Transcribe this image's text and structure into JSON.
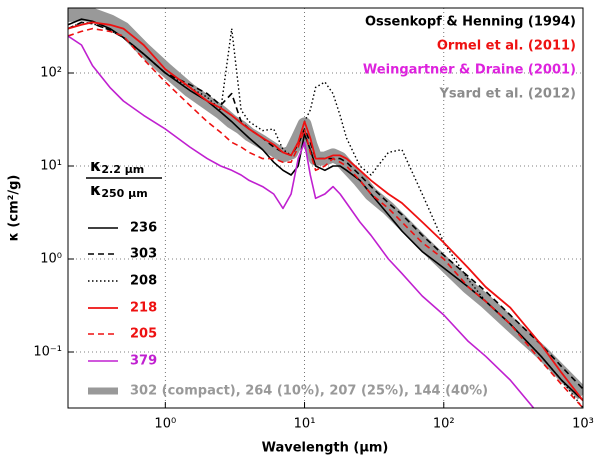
{
  "chart_data": {
    "type": "line",
    "xlabel": "Wavelength (μm)",
    "ylabel": "κ (cm²/g)",
    "xscale": "log",
    "yscale": "log",
    "grid": true,
    "xlim": [
      0.2,
      1000
    ],
    "ylim": [
      0.025,
      500
    ],
    "xticks": [
      {
        "value": 1,
        "label": "10⁰"
      },
      {
        "value": 10,
        "label": "10¹"
      },
      {
        "value": 100,
        "label": "10²"
      },
      {
        "value": 1000,
        "label": "10³"
      }
    ],
    "yticks": [
      {
        "value": 0.1,
        "label": "10⁻¹"
      },
      {
        "value": 1,
        "label": "10⁰"
      },
      {
        "value": 10,
        "label": "10¹"
      },
      {
        "value": 100,
        "label": "10²"
      }
    ],
    "references": [
      {
        "name": "Ossenkopf & Henning (1994)",
        "color": "#000000"
      },
      {
        "name": "Ormel et al. (2011)",
        "color": "#ee1111"
      },
      {
        "name": "Weingartner & Draine (2001)",
        "color": "#dd22dd"
      },
      {
        "name": "Ysard et al. (2012)",
        "color": "#8c8c8c"
      }
    ],
    "legend_title": {
      "numerator": {
        "symbol": "κ",
        "subscript": "2.2 μm"
      },
      "denominator": {
        "symbol": "κ",
        "subscript": "250 μm"
      }
    },
    "x": [
      0.2,
      0.25,
      0.3,
      0.4,
      0.5,
      0.7,
      1,
      1.5,
      2,
      2.5,
      3,
      3.5,
      4,
      5,
      6,
      7,
      8,
      9,
      10,
      11,
      12,
      14,
      16,
      18,
      20,
      25,
      30,
      40,
      50,
      70,
      100,
      150,
      200,
      300,
      500,
      700,
      1000
    ],
    "series": [
      {
        "name": "302 (compact), 264 (10%), 207 (25%), 144 (40%)",
        "color": "#999999",
        "dash": "solid",
        "width": 14,
        "values": [
          420,
          430,
          420,
          360,
          300,
          180,
          110,
          65,
          48,
          38,
          30,
          26,
          22,
          18,
          15,
          13,
          14,
          20,
          28,
          17,
          12,
          12,
          13,
          12,
          10,
          7,
          5,
          3.5,
          2.5,
          1.5,
          0.9,
          0.5,
          0.35,
          0.2,
          0.1,
          0.06,
          0.035
        ]
      },
      {
        "name": "236",
        "color": "#000000",
        "dash": "solid",
        "width": 1.6,
        "values": [
          330,
          380,
          360,
          300,
          240,
          160,
          100,
          65,
          50,
          38,
          30,
          24,
          20,
          15,
          11,
          9,
          8,
          10,
          22,
          15,
          10,
          9,
          10,
          10,
          9,
          7,
          5,
          3,
          2,
          1.2,
          0.8,
          0.5,
          0.35,
          0.2,
          0.09,
          0.05,
          0.03
        ]
      },
      {
        "name": "303",
        "color": "#000000",
        "dash": "dashed",
        "width": 1.6,
        "values": [
          300,
          350,
          340,
          290,
          240,
          160,
          100,
          75,
          60,
          45,
          60,
          30,
          25,
          20,
          16,
          14,
          13,
          17,
          25,
          18,
          12,
          12,
          12,
          12,
          11,
          8,
          6,
          4,
          3,
          1.8,
          1.1,
          0.65,
          0.45,
          0.25,
          0.12,
          0.07,
          0.04
        ]
      },
      {
        "name": "208",
        "color": "#000000",
        "dash": "dotted",
        "width": 1.4,
        "values": [
          300,
          350,
          340,
          290,
          240,
          160,
          100,
          70,
          55,
          40,
          300,
          40,
          30,
          24,
          25,
          15,
          13,
          18,
          30,
          40,
          70,
          80,
          60,
          35,
          20,
          10,
          8,
          14,
          15,
          5,
          1.5,
          0.6,
          0.35,
          0.2,
          0.09,
          0.05,
          0.025
        ]
      },
      {
        "name": "218",
        "color": "#ee1111",
        "dash": "solid",
        "width": 1.8,
        "values": [
          300,
          330,
          350,
          330,
          300,
          200,
          110,
          70,
          50,
          42,
          35,
          29,
          25,
          20,
          17,
          14,
          13,
          18,
          30,
          20,
          12,
          12,
          13,
          13,
          12,
          9,
          7,
          5,
          4,
          2.5,
          1.5,
          0.8,
          0.5,
          0.3,
          0.12,
          0.06,
          0.03
        ]
      },
      {
        "name": "205",
        "color": "#ee1111",
        "dash": "dashed",
        "width": 1.6,
        "values": [
          250,
          280,
          300,
          280,
          250,
          140,
          80,
          45,
          30,
          23,
          18,
          16,
          14,
          12,
          12,
          11,
          11,
          16,
          25,
          14,
          9,
          10,
          12,
          11,
          10,
          7,
          5,
          3.5,
          2.5,
          1.5,
          1,
          0.5,
          0.35,
          0.2,
          0.08,
          0.045,
          0.025
        ]
      },
      {
        "name": "379",
        "color": "#c020d0",
        "dash": "solid",
        "width": 1.6,
        "values": [
          250,
          200,
          120,
          70,
          50,
          35,
          25,
          16,
          12,
          10,
          9,
          8,
          7,
          6,
          5,
          3.5,
          5,
          12,
          18,
          8,
          4.5,
          5,
          6,
          5,
          4,
          2.5,
          1.8,
          1,
          0.7,
          0.4,
          0.25,
          0.13,
          0.09,
          0.05,
          0.02,
          null,
          null
        ]
      }
    ]
  }
}
